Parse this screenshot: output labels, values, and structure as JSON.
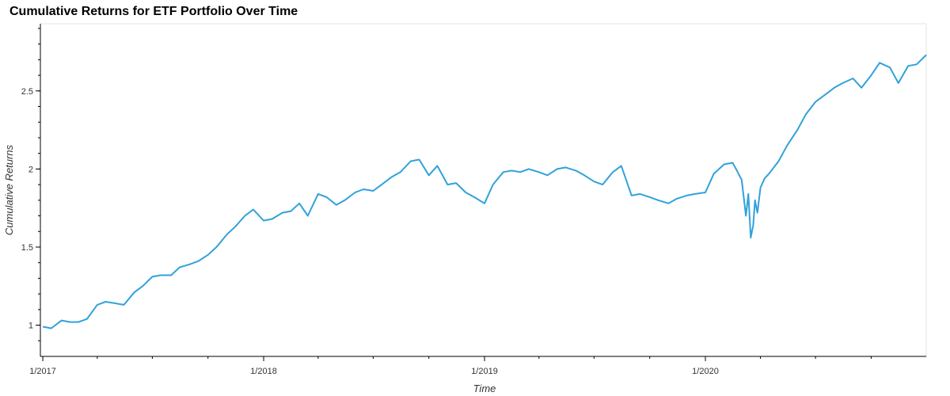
{
  "chart_data": {
    "type": "line",
    "title": "Cumulative Returns for ETF Portfolio Over Time",
    "xlabel": "Time",
    "ylabel": "Cumulative Returns",
    "x_tick_labels": [
      "1/2017",
      "1/2018",
      "1/2019",
      "1/2020"
    ],
    "y_tick_labels": [
      "1",
      "1.5",
      "2",
      "2.5"
    ],
    "y_ticks": [
      1,
      1.5,
      2,
      2.5
    ],
    "xlim": [
      "2016-12-28",
      "2020-12-31"
    ],
    "ylim": [
      0.8,
      2.93
    ],
    "grid": false,
    "legend": "none",
    "colors": {
      "line": "#30a2da"
    },
    "series": [
      {
        "x": [
          "2017-01-01",
          "2017-01-15",
          "2017-02-01",
          "2017-02-15",
          "2017-03-01",
          "2017-03-15",
          "2017-04-01",
          "2017-04-15",
          "2017-05-01",
          "2017-05-15",
          "2017-06-01",
          "2017-06-15",
          "2017-07-01",
          "2017-07-15",
          "2017-08-01",
          "2017-08-15",
          "2017-09-01",
          "2017-09-15",
          "2017-10-01",
          "2017-10-15",
          "2017-11-01",
          "2017-11-15",
          "2017-12-01",
          "2017-12-15",
          "2018-01-01",
          "2018-01-15",
          "2018-02-01",
          "2018-02-15",
          "2018-03-01",
          "2018-03-15",
          "2018-04-01",
          "2018-04-15",
          "2018-05-01",
          "2018-05-15",
          "2018-06-01",
          "2018-06-15",
          "2018-07-01",
          "2018-07-15",
          "2018-08-01",
          "2018-08-15",
          "2018-09-01",
          "2018-09-15",
          "2018-10-01",
          "2018-10-15",
          "2018-11-01",
          "2018-11-15",
          "2018-12-01",
          "2018-12-15",
          "2019-01-01",
          "2019-01-15",
          "2019-02-01",
          "2019-02-15",
          "2019-03-01",
          "2019-03-15",
          "2019-04-01",
          "2019-04-15",
          "2019-05-01",
          "2019-05-15",
          "2019-06-01",
          "2019-06-15",
          "2019-07-01",
          "2019-07-15",
          "2019-08-01",
          "2019-08-15",
          "2019-09-01",
          "2019-09-15",
          "2019-10-01",
          "2019-10-15",
          "2019-11-01",
          "2019-11-15",
          "2019-12-01",
          "2019-12-15",
          "2020-01-01",
          "2020-01-15",
          "2020-02-01",
          "2020-02-15",
          "2020-02-22",
          "2020-03-01",
          "2020-03-08",
          "2020-03-12",
          "2020-03-16",
          "2020-03-20",
          "2020-03-23",
          "2020-03-27",
          "2020-04-01",
          "2020-04-08",
          "2020-04-15",
          "2020-05-01",
          "2020-05-15",
          "2020-06-01",
          "2020-06-15",
          "2020-07-01",
          "2020-07-15",
          "2020-08-01",
          "2020-08-15",
          "2020-09-01",
          "2020-09-15",
          "2020-10-01",
          "2020-10-15",
          "2020-11-01",
          "2020-11-15",
          "2020-12-01",
          "2020-12-15",
          "2020-12-31"
        ],
        "y": [
          0.99,
          0.98,
          1.03,
          1.02,
          1.02,
          1.04,
          1.13,
          1.15,
          1.14,
          1.13,
          1.21,
          1.25,
          1.31,
          1.32,
          1.32,
          1.37,
          1.39,
          1.41,
          1.45,
          1.5,
          1.58,
          1.63,
          1.7,
          1.74,
          1.67,
          1.68,
          1.72,
          1.73,
          1.78,
          1.7,
          1.84,
          1.82,
          1.77,
          1.8,
          1.85,
          1.87,
          1.86,
          1.9,
          1.95,
          1.98,
          2.05,
          2.06,
          1.96,
          2.02,
          1.9,
          1.91,
          1.85,
          1.82,
          1.78,
          1.9,
          1.98,
          1.99,
          1.98,
          2.0,
          1.98,
          1.96,
          2.0,
          2.01,
          1.99,
          1.96,
          1.92,
          1.9,
          1.98,
          2.02,
          1.83,
          1.84,
          1.82,
          1.8,
          1.78,
          1.81,
          1.83,
          1.84,
          1.85,
          1.97,
          2.03,
          2.04,
          1.99,
          1.93,
          1.7,
          1.84,
          1.56,
          1.64,
          1.8,
          1.72,
          1.88,
          1.94,
          1.97,
          2.05,
          2.15,
          2.25,
          2.35,
          2.43,
          2.47,
          2.52,
          2.55,
          2.58,
          2.52,
          2.6,
          2.68,
          2.65,
          2.55,
          2.66,
          2.67,
          2.73
        ]
      }
    ]
  }
}
